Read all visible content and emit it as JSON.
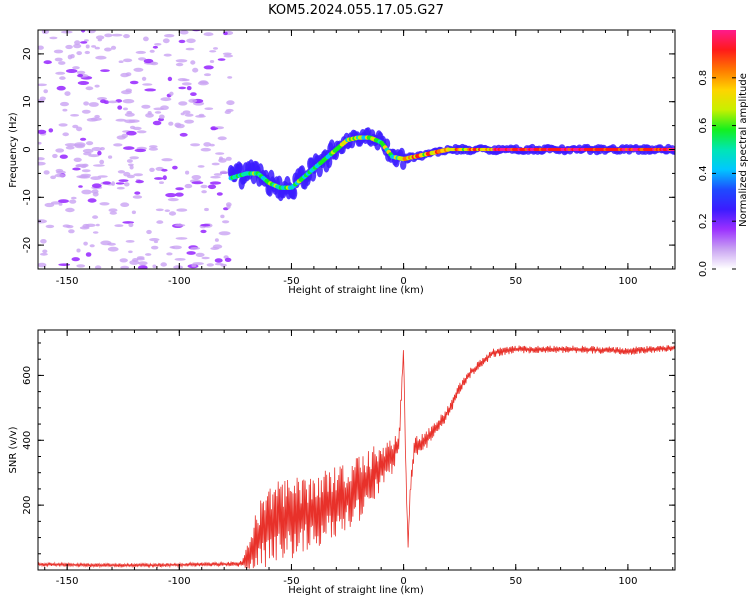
{
  "title": "KOM5.2024.055.17.05.G27",
  "colors": {
    "snr_line": "#e8312a",
    "colormap": [
      "#ffffff",
      "#c9a3f2",
      "#9b30ff",
      "#3b1cff",
      "#1e4bff",
      "#00c8ff",
      "#00e6b4",
      "#14f01e",
      "#c8f000",
      "#ffd400",
      "#ff7800",
      "#ff1a1a",
      "#ff1a8c"
    ]
  },
  "chart_data": [
    {
      "type": "heatmap",
      "xlabel": "Height of straight line (km)",
      "ylabel": "Frequency (Hz)",
      "xlim": [
        -163,
        121
      ],
      "ylim": [
        -25,
        25
      ],
      "xticks": [
        -150,
        -100,
        -50,
        0,
        50,
        100
      ],
      "yticks": [
        -20,
        -10,
        0,
        10,
        20
      ],
      "colorbar": {
        "label": "Normalized spectral amplitude",
        "range": [
          0,
          1
        ],
        "ticks": [
          0.0,
          0.2,
          0.4,
          0.6,
          0.8
        ]
      },
      "ridge": {
        "x": [
          -77,
          -70,
          -65,
          -60,
          -55,
          -50,
          -45,
          -40,
          -35,
          -30,
          -25,
          -20,
          -15,
          -10,
          -5,
          0,
          5,
          10,
          15,
          20,
          25,
          30,
          40,
          50,
          60,
          80,
          100,
          120
        ],
        "freq": [
          -6,
          -5,
          -5,
          -7,
          -8,
          -8,
          -6,
          -4,
          -2,
          0,
          2,
          2.5,
          2.5,
          1.5,
          -1.5,
          -2,
          -1.5,
          -1,
          -0.5,
          0,
          0,
          0,
          0,
          0,
          0,
          0,
          0,
          0
        ]
      },
      "noise_region_x": [
        -163,
        -77
      ]
    },
    {
      "type": "line",
      "xlabel": "Height of straight line (km)",
      "ylabel": "SNR (v/v)",
      "xlim": [
        -163,
        121
      ],
      "ylim": [
        0,
        740
      ],
      "xticks": [
        -150,
        -100,
        -50,
        0,
        50,
        100
      ],
      "yticks": [
        200,
        400,
        600
      ],
      "series": [
        {
          "x": [
            -163,
            -140,
            -110,
            -80,
            -72,
            -68,
            -65,
            -60,
            -55,
            -50,
            -45,
            -40,
            -35,
            -30,
            -25,
            -20,
            -15,
            -10,
            -5,
            -2,
            0,
            1,
            2,
            3,
            5,
            10,
            15,
            20,
            25,
            30,
            35,
            40,
            50,
            60,
            80,
            100,
            121
          ],
          "y": [
            18,
            15,
            15,
            18,
            20,
            60,
            100,
            130,
            150,
            160,
            170,
            180,
            200,
            210,
            230,
            250,
            280,
            320,
            350,
            400,
            680,
            300,
            80,
            250,
            380,
            400,
            440,
            490,
            560,
            610,
            640,
            670,
            680,
            680,
            680,
            675,
            685
          ],
          "spread": [
            5,
            5,
            5,
            5,
            8,
            60,
            90,
            110,
            110,
            110,
            100,
            100,
            100,
            95,
            90,
            90,
            80,
            60,
            45,
            30,
            10,
            20,
            10,
            25,
            30,
            25,
            20,
            18,
            14,
            12,
            12,
            12,
            10,
            10,
            10,
            10,
            10
          ]
        }
      ]
    }
  ]
}
